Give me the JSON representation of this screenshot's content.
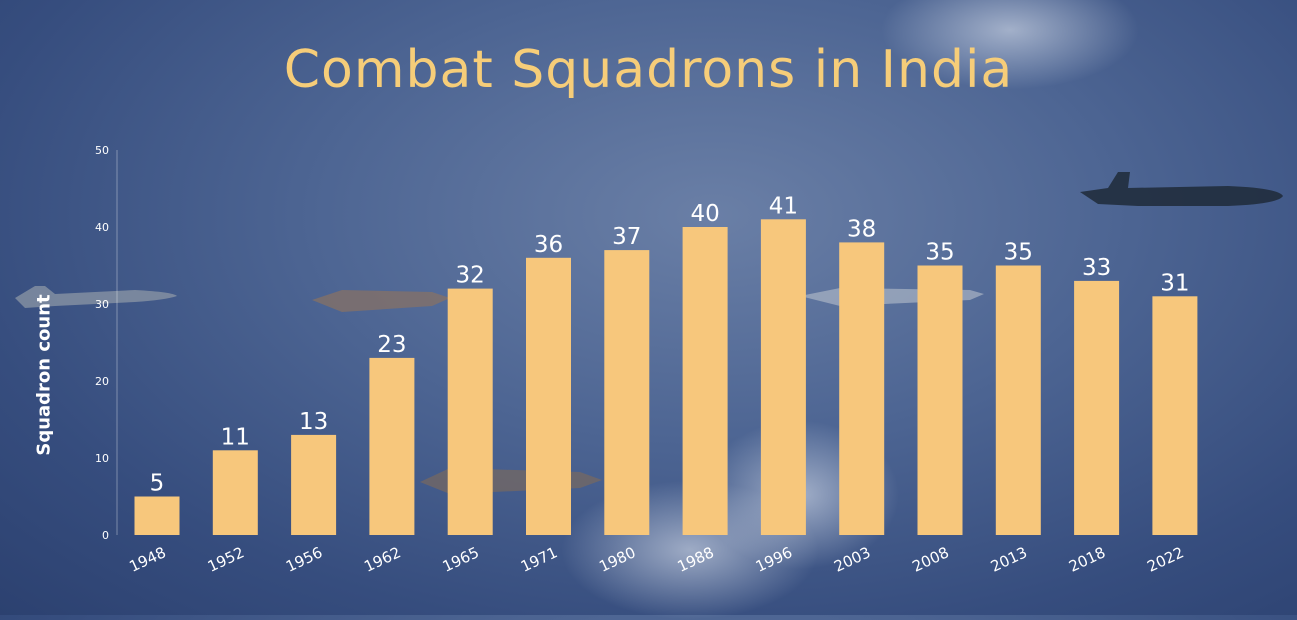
{
  "chart_data": {
    "type": "bar",
    "title": "Combat Squadrons in India",
    "xlabel": "",
    "ylabel": "Squadron count",
    "ylim": [
      0,
      50
    ],
    "yticks": [
      0,
      10,
      20,
      30,
      40,
      50
    ],
    "grid": false,
    "categories": [
      "1948",
      "1952",
      "1956",
      "1962",
      "1965",
      "1971",
      "1980",
      "1988",
      "1996",
      "2003",
      "2008",
      "2013",
      "2018",
      "2022"
    ],
    "values": [
      5,
      11,
      13,
      23,
      32,
      36,
      37,
      40,
      41,
      38,
      35,
      35,
      33,
      31
    ],
    "colors": {
      "bar": "#f7c77c",
      "title": "#f6cd79",
      "label": "#ffffff"
    }
  }
}
